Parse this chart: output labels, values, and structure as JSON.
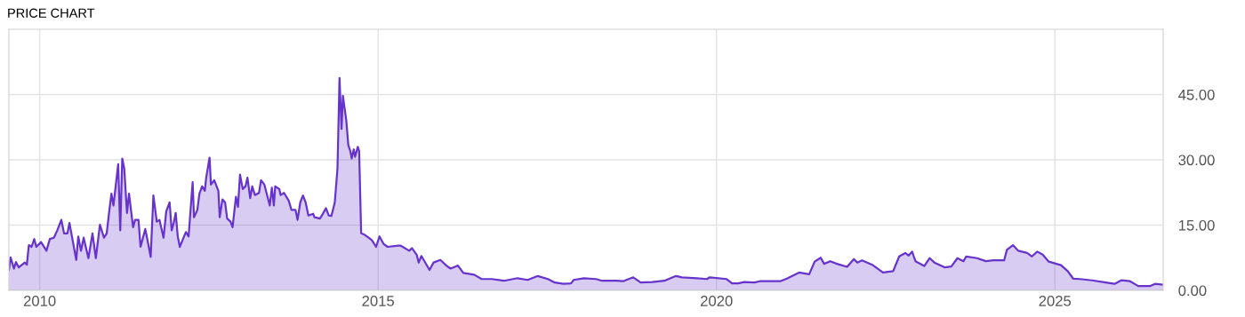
{
  "chart_data": {
    "type": "area",
    "title": "PRICE CHART",
    "x": [
      2009.545,
      2009.57,
      2009.62,
      2009.65,
      2009.69,
      2009.78,
      2009.81,
      2009.84,
      2009.88,
      2009.92,
      2009.95,
      2010.02,
      2010.1,
      2010.15,
      2010.21,
      2010.26,
      2010.32,
      2010.36,
      2010.41,
      2010.44,
      2010.54,
      2010.57,
      2010.61,
      2010.65,
      2010.72,
      2010.78,
      2010.83,
      2010.89,
      2010.95,
      2010.99,
      2011.03,
      2011.06,
      2011.09,
      2011.16,
      2011.19,
      2011.22,
      2011.25,
      2011.29,
      2011.32,
      2011.38,
      2011.41,
      2011.46,
      2011.49,
      2011.56,
      2011.59,
      2011.64,
      2011.68,
      2011.73,
      2011.77,
      2011.83,
      2011.87,
      2011.92,
      2011.95,
      2011.98,
      2012.01,
      2012.04,
      2012.07,
      2012.16,
      2012.2,
      2012.26,
      2012.28,
      2012.33,
      2012.36,
      2012.4,
      2012.44,
      2012.46,
      2012.51,
      2012.53,
      2012.58,
      2012.64,
      2012.66,
      2012.7,
      2012.74,
      2012.77,
      2012.82,
      2012.85,
      2012.9,
      2012.93,
      2012.96,
      2013.0,
      2013.04,
      2013.07,
      2013.11,
      2013.14,
      2013.18,
      2013.24,
      2013.27,
      2013.32,
      2013.4,
      2013.43,
      2013.46,
      2013.48,
      2013.54,
      2013.56,
      2013.61,
      2013.68,
      2013.72,
      2013.78,
      2013.81,
      2013.85,
      2013.89,
      2013.93,
      2013.97,
      2014.04,
      2014.06,
      2014.14,
      2014.17,
      2014.23,
      2014.27,
      2014.31,
      2014.36,
      2014.4,
      2014.43,
      2014.46,
      2014.48,
      2014.53,
      2014.56,
      2014.59,
      2014.61,
      2014.64,
      2014.66,
      2014.7,
      2014.72,
      2014.75,
      2014.8,
      2014.86,
      2014.91,
      2014.97,
      2015.02,
      2015.08,
      2015.14,
      2015.3,
      2015.33,
      2015.46,
      2015.5,
      2015.57,
      2015.6,
      2015.64,
      2015.76,
      2015.82,
      2015.92,
      2016.01,
      2016.07,
      2016.18,
      2016.26,
      2016.42,
      2016.53,
      2016.68,
      2016.86,
      2017.06,
      2017.21,
      2017.36,
      2017.51,
      2017.61,
      2017.74,
      2017.85,
      2017.89,
      2018.04,
      2018.22,
      2018.31,
      2018.53,
      2018.62,
      2018.77,
      2018.88,
      2019.05,
      2019.23,
      2019.4,
      2019.49,
      2019.71,
      2019.86,
      2019.9,
      2020.15,
      2020.23,
      2020.32,
      2020.41,
      2020.56,
      2020.64,
      2020.94,
      2021.04,
      2021.22,
      2021.37,
      2021.45,
      2021.54,
      2021.59,
      2021.68,
      2021.78,
      2021.93,
      2022.03,
      2022.08,
      2022.15,
      2022.31,
      2022.46,
      2022.61,
      2022.7,
      2022.79,
      2022.84,
      2022.89,
      2022.94,
      2023.07,
      2023.15,
      2023.22,
      2023.37,
      2023.47,
      2023.56,
      2023.65,
      2023.69,
      2023.85,
      2023.98,
      2024.09,
      2024.25,
      2024.29,
      2024.38,
      2024.46,
      2024.59,
      2024.66,
      2024.74,
      2024.82,
      2024.91,
      2025.0,
      2025.09,
      2025.19,
      2025.27,
      2025.37,
      2025.55,
      2025.75,
      2025.88,
      2025.98,
      2026.11,
      2026.21,
      2026.23,
      2026.41,
      2026.48,
      2026.6
    ],
    "series": [
      {
        "color": "#6633cc",
        "values": [
          4.7,
          7.6,
          5.0,
          6.5,
          5.3,
          6.4,
          5.9,
          10.4,
          10.0,
          11.8,
          10.0,
          11.1,
          9.1,
          11.8,
          12.1,
          13.8,
          16.2,
          13.1,
          13.1,
          15.5,
          7.0,
          12.4,
          9.1,
          12.1,
          7.4,
          13.1,
          7.4,
          15.1,
          12.1,
          13.1,
          18.5,
          22.2,
          19.5,
          29.0,
          13.8,
          30.3,
          27.9,
          17.8,
          22.2,
          14.5,
          16.2,
          16.2,
          10.0,
          14.1,
          11.8,
          7.7,
          21.8,
          15.8,
          16.2,
          12.1,
          18.2,
          20.2,
          13.8,
          15.5,
          17.8,
          12.4,
          10.0,
          13.4,
          12.4,
          24.9,
          16.8,
          18.5,
          22.2,
          23.9,
          22.9,
          25.9,
          30.5,
          24.3,
          25.3,
          22.9,
          16.8,
          20.9,
          20.2,
          16.5,
          15.8,
          14.5,
          21.5,
          19.2,
          26.6,
          23.3,
          23.9,
          25.9,
          21.2,
          23.9,
          21.9,
          22.4,
          25.3,
          24.3,
          19.5,
          23.6,
          19.5,
          23.9,
          23.3,
          21.9,
          22.4,
          20.6,
          18.5,
          18.5,
          16.2,
          20.2,
          21.8,
          20.2,
          17.2,
          17.6,
          16.8,
          16.5,
          17.2,
          18.9,
          17.2,
          17.1,
          20.2,
          28.0,
          48.8,
          37.1,
          44.7,
          39.1,
          33.4,
          32.0,
          30.3,
          32.4,
          30.7,
          33.0,
          32.0,
          13.1,
          12.8,
          12.1,
          11.5,
          10.0,
          12.4,
          10.7,
          10.0,
          10.3,
          10.3,
          9.1,
          9.7,
          8.2,
          6.4,
          7.9,
          4.7,
          6.4,
          7.0,
          5.7,
          5.0,
          5.7,
          4.0,
          3.6,
          2.6,
          2.6,
          2.2,
          2.8,
          2.4,
          3.3,
          2.6,
          1.8,
          1.5,
          1.6,
          2.4,
          2.8,
          2.6,
          2.2,
          2.2,
          2.1,
          3.0,
          1.8,
          1.9,
          2.2,
          3.3,
          3.0,
          2.8,
          2.6,
          3.0,
          2.6,
          1.6,
          1.6,
          1.9,
          1.8,
          2.1,
          2.1,
          2.7,
          4.1,
          3.7,
          6.6,
          7.5,
          6.1,
          6.7,
          6.1,
          5.4,
          7.2,
          6.4,
          6.9,
          5.8,
          4.1,
          4.4,
          7.8,
          8.6,
          8.0,
          8.9,
          6.7,
          5.6,
          7.4,
          6.4,
          5.3,
          5.5,
          7.4,
          6.7,
          7.8,
          7.4,
          6.7,
          6.9,
          6.9,
          9.3,
          10.4,
          9.1,
          8.6,
          7.8,
          8.9,
          8.2,
          6.6,
          6.2,
          5.8,
          4.4,
          2.7,
          2.6,
          2.3,
          1.8,
          1.5,
          2.3,
          2.1,
          1.2,
          1.0,
          1.0,
          1.5,
          1.3
        ]
      }
    ],
    "xlim": [
      2009.545,
      2026.6
    ],
    "ylim": [
      0,
      60
    ],
    "xticks": [
      2010,
      2015,
      2020,
      2025
    ],
    "yticks": [
      {
        "value": 0,
        "label": "0.00"
      },
      {
        "value": 15,
        "label": "15.00"
      },
      {
        "value": 30,
        "label": "30.00"
      },
      {
        "value": 45,
        "label": "45.00"
      }
    ],
    "grid": true,
    "marker": "none",
    "line_style": "solid"
  }
}
